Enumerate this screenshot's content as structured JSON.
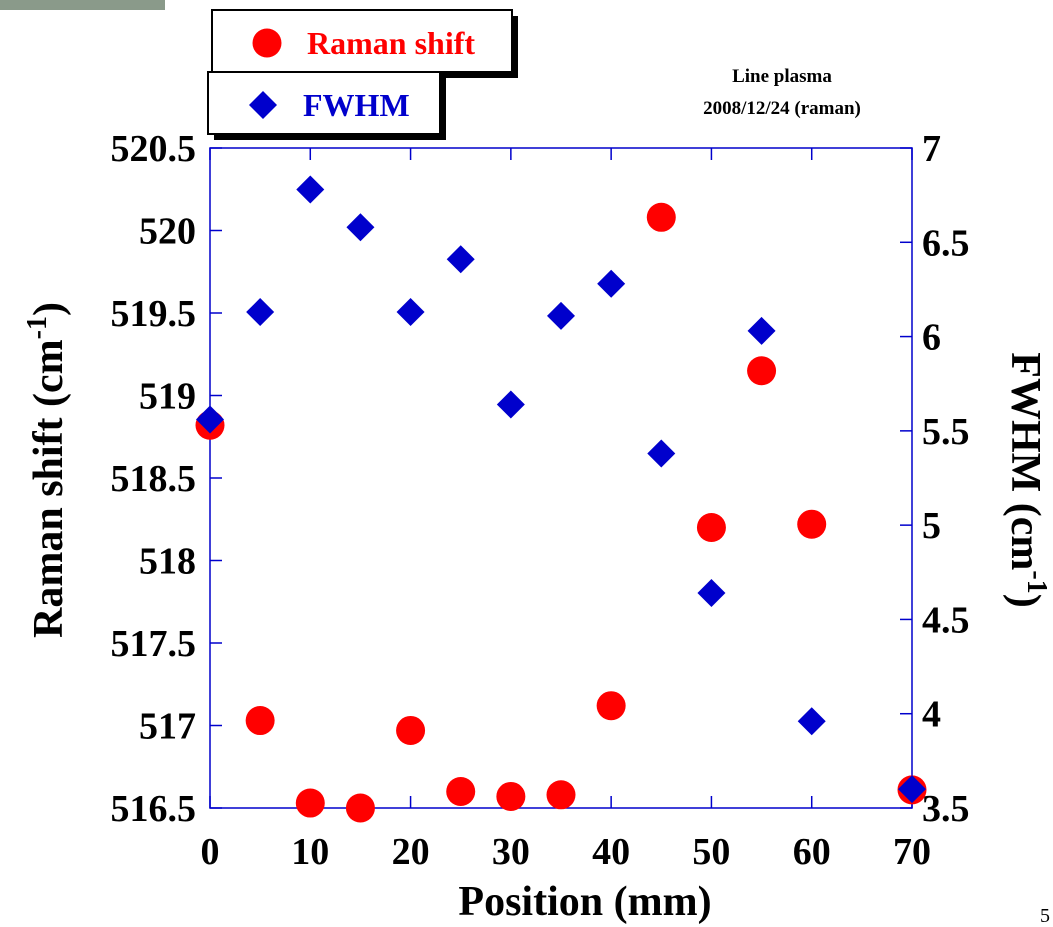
{
  "chart_data": {
    "type": "scatter",
    "ylabel": [
      "Raman shift (cm",
      "-1",
      ")"
    ],
    "y2label": [
      "FWHM (cm",
      "-1",
      ")"
    ],
    "xlabel": "Position (mm)",
    "annotations": [
      "Line plasma",
      "2008/12/24 (raman)"
    ],
    "page_number": "5",
    "x": [
      0,
      5,
      10,
      15,
      20,
      25,
      30,
      35,
      40,
      45,
      50,
      55,
      60,
      70
    ],
    "series": [
      {
        "name": "Raman shift",
        "color": "#ff0000",
        "marker": "circle",
        "values": [
          518.82,
          517.03,
          516.53,
          516.5,
          516.97,
          516.6,
          516.57,
          516.58,
          517.12,
          520.08,
          518.2,
          519.15,
          518.22,
          516.61
        ]
      },
      {
        "name": "FWHM",
        "color": "#0000cc",
        "marker": "diamond",
        "axis": "y2",
        "values": [
          5.56,
          6.13,
          6.78,
          6.58,
          6.13,
          6.41,
          5.64,
          6.11,
          6.28,
          5.38,
          4.64,
          6.03,
          3.96,
          3.6
        ]
      }
    ],
    "xlim": [
      0,
      70
    ],
    "xticks": [
      0,
      10,
      20,
      30,
      40,
      50,
      60,
      70
    ],
    "ylim": [
      516.5,
      520.5
    ],
    "yticks": [
      516.5,
      517,
      517.5,
      518,
      518.5,
      519,
      519.5,
      520,
      520.5
    ],
    "y2lim": [
      3.5,
      7
    ],
    "y2ticks": [
      3.5,
      4,
      4.5,
      5,
      5.5,
      6,
      6.5,
      7
    ],
    "axis_color": "#0000cc"
  }
}
